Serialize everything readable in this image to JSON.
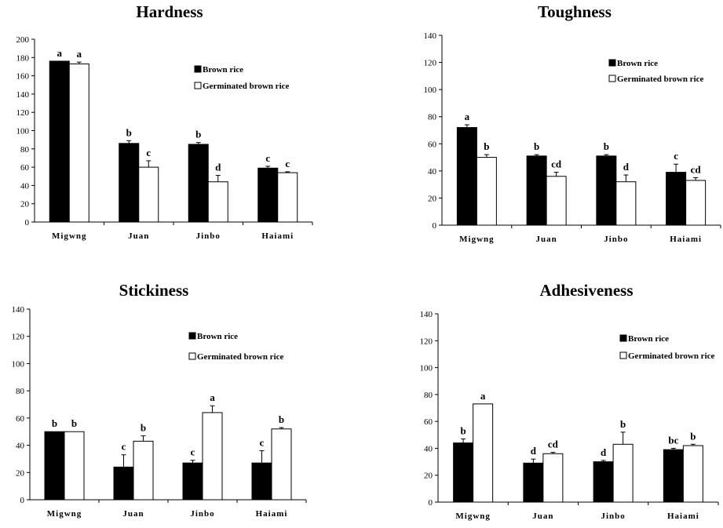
{
  "chart_data": [
    {
      "type": "bar",
      "title": "Hardness",
      "categories": [
        "Migwng",
        "Juan",
        "Jinbo",
        "Haiami"
      ],
      "ylim": [
        0,
        200
      ],
      "yticks": [
        0,
        20,
        40,
        60,
        80,
        100,
        120,
        140,
        160,
        180,
        200
      ],
      "series": [
        {
          "name": "Brown rice",
          "color": "#000000",
          "values": [
            176,
            86,
            85,
            59
          ],
          "errors": [
            0,
            3,
            2,
            2
          ],
          "letters": [
            "a",
            "b",
            "b",
            "c"
          ]
        },
        {
          "name": "Germinated brown rice",
          "color": "#ffffff",
          "values": [
            173,
            60,
            44,
            54
          ],
          "errors": [
            2,
            7,
            7,
            1
          ],
          "letters": [
            "a",
            "c",
            "d",
            "c"
          ]
        }
      ]
    },
    {
      "type": "bar",
      "title": "Toughness",
      "categories": [
        "Migwng",
        "Juan",
        "Jinbo",
        "Haiami"
      ],
      "ylim": [
        0,
        140
      ],
      "yticks": [
        0,
        20,
        40,
        60,
        80,
        100,
        120,
        140
      ],
      "series": [
        {
          "name": "Brown rice",
          "color": "#000000",
          "values": [
            72,
            51,
            51,
            39
          ],
          "errors": [
            2,
            1,
            1,
            6
          ],
          "letters": [
            "a",
            "b",
            "b",
            "c"
          ]
        },
        {
          "name": "Germinated brown rice",
          "color": "#ffffff",
          "values": [
            50,
            36,
            32,
            33
          ],
          "errors": [
            2,
            3,
            5,
            2
          ],
          "letters": [
            "b",
            "cd",
            "d",
            "cd"
          ]
        }
      ]
    },
    {
      "type": "bar",
      "title": "Stickiness",
      "categories": [
        "Migwng",
        "Juan",
        "Jinbo",
        "Haiami"
      ],
      "ylim": [
        0,
        140
      ],
      "yticks": [
        0,
        20,
        40,
        60,
        80,
        100,
        120,
        140
      ],
      "series": [
        {
          "name": "Brown rice",
          "color": "#000000",
          "values": [
            50,
            24,
            27,
            27
          ],
          "errors": [
            0,
            9,
            2,
            9
          ],
          "letters": [
            "b",
            "c",
            "c",
            "c"
          ]
        },
        {
          "name": "Germinated brown rice",
          "color": "#ffffff",
          "values": [
            50,
            43,
            64,
            52
          ],
          "errors": [
            0,
            4,
            5,
            1
          ],
          "letters": [
            "b",
            "b",
            "a",
            "b"
          ]
        }
      ]
    },
    {
      "type": "bar",
      "title": "Adhesiveness",
      "categories": [
        "Migwng",
        "Juan",
        "Jinbo",
        "Haiami"
      ],
      "ylim": [
        0,
        140
      ],
      "yticks": [
        0,
        20,
        40,
        60,
        80,
        100,
        120,
        140
      ],
      "series": [
        {
          "name": "Brown rice",
          "color": "#000000",
          "values": [
            44,
            29,
            30,
            39
          ],
          "errors": [
            3,
            3,
            1,
            1
          ],
          "letters": [
            "b",
            "d",
            "d",
            "bc"
          ]
        },
        {
          "name": "Germinated brown rice",
          "color": "#ffffff",
          "values": [
            73,
            36,
            43,
            42
          ],
          "errors": [
            0,
            1,
            9,
            1
          ],
          "letters": [
            "a",
            "cd",
            "b",
            "b"
          ]
        }
      ]
    }
  ]
}
